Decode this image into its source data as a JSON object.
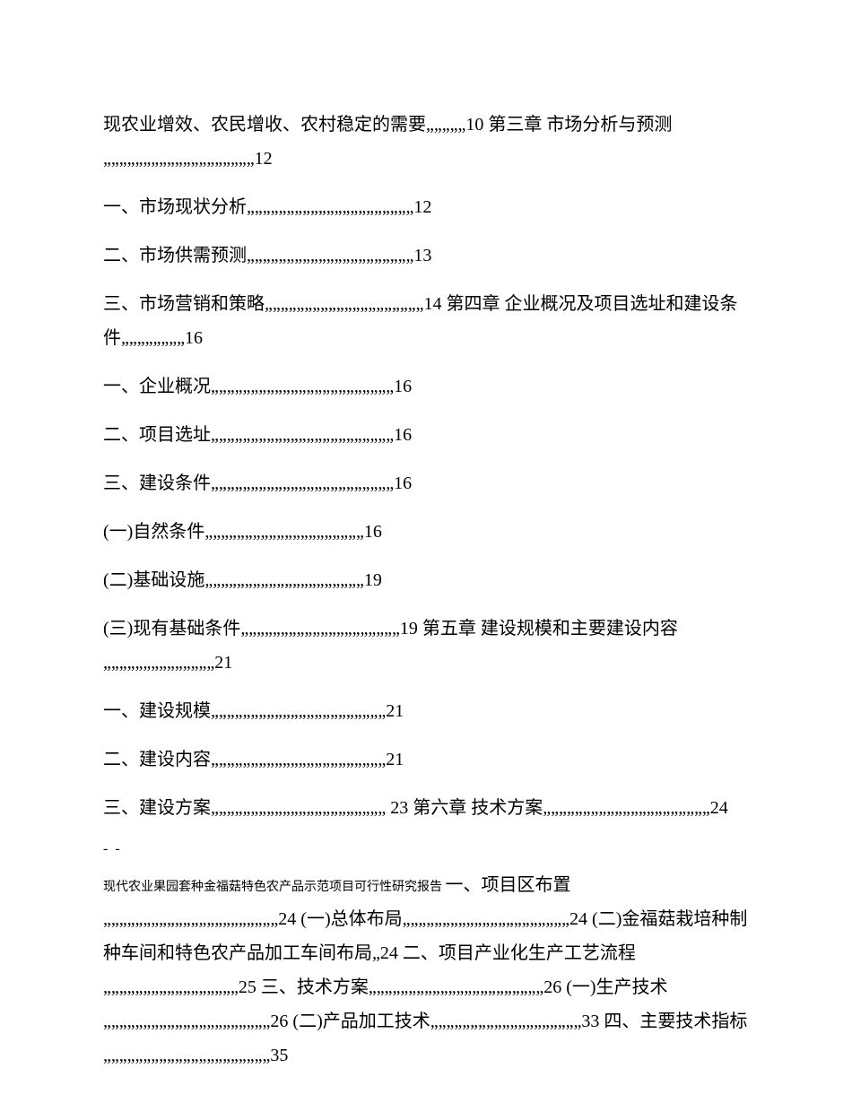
{
  "entries": [
    {
      "text": "现农业增效、农民增收、农村稳定的需要„„„„„10 第三章 市场分析与预测„„„„„„„„„„„„„„„„„„„12"
    },
    {
      "text": "一、市场现状分析„„„„„„„„„„„„„„„„„„„„„12"
    },
    {
      "text": "二、市场供需预测„„„„„„„„„„„„„„„„„„„„„13"
    },
    {
      "text": "三、市场营销和策略„„„„„„„„„„„„„„„„„„„„14 第四章 企业概况及项目选址和建设条件„„„„„„„„16"
    },
    {
      "text": "一、企业概况„„„„„„„„„„„„„„„„„„„„„„„16"
    },
    {
      "text": "二、项目选址„„„„„„„„„„„„„„„„„„„„„„„16"
    },
    {
      "text": "三、建设条件„„„„„„„„„„„„„„„„„„„„„„„16"
    },
    {
      "text": "(一)自然条件„„„„„„„„„„„„„„„„„„„„16"
    },
    {
      "text": "(二)基础设施„„„„„„„„„„„„„„„„„„„„19"
    },
    {
      "text": "(三)现有基础条件„„„„„„„„„„„„„„„„„„„„19 第五章 建设规模和主要建设内容„„„„„„„„„„„„„„21"
    },
    {
      "text": "一、建设规模„„„„„„„„„„„„„„„„„„„„„„21"
    },
    {
      "text": "二、建设内容„„„„„„„„„„„„„„„„„„„„„„21"
    },
    {
      "text": "三、建设方案„„„„„„„„„„„„„„„„„„„„„„ 23 第六章 技术方案„„„„„„„„„„„„„„„„„„„„„24"
    }
  ],
  "separator": "- -",
  "footer_small": "现代农业果园套种金福菇特色农产品示范项目可行性研究报告 ",
  "footer_main": "一、项目区布置„„„„„„„„„„„„„„„„„„„„„„24 (一)总体布局„„„„„„„„„„„„„„„„„„„„„24 (二)金福菇栽培种制种车间和特色农产品加工车间布局„24 二、项目产业化生产工艺流程„„„„„„„„„„„„„„„„„25 三、技术方案„„„„„„„„„„„„„„„„„„„„„„26 (一)生产技术„„„„„„„„„„„„„„„„„„„„„26 (二)产品加工技术„„„„„„„„„„„„„„„„„„„33 四、主要技术指标„„„„„„„„„„„„„„„„„„„„„35"
}
